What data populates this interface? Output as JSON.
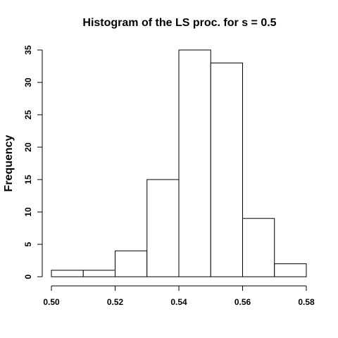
{
  "chart_data": {
    "type": "bar",
    "title": "Histogram of the LS proc. for s = 0.5",
    "xlabel": "",
    "ylabel": "Frequency",
    "bins": [
      {
        "start": 0.5,
        "end": 0.51,
        "count": 1
      },
      {
        "start": 0.51,
        "end": 0.52,
        "count": 1
      },
      {
        "start": 0.52,
        "end": 0.53,
        "count": 4
      },
      {
        "start": 0.53,
        "end": 0.54,
        "count": 15
      },
      {
        "start": 0.54,
        "end": 0.55,
        "count": 35
      },
      {
        "start": 0.55,
        "end": 0.56,
        "count": 33
      },
      {
        "start": 0.56,
        "end": 0.57,
        "count": 9
      },
      {
        "start": 0.57,
        "end": 0.58,
        "count": 2
      }
    ],
    "xlim": [
      0.5,
      0.58
    ],
    "ylim": [
      0,
      35
    ],
    "xticks": [
      "0.50",
      "0.52",
      "0.54",
      "0.56",
      "0.58"
    ],
    "xtick_values": [
      0.5,
      0.52,
      0.54,
      0.56,
      0.58
    ],
    "yticks": [
      "0",
      "5",
      "10",
      "15",
      "20",
      "25",
      "30",
      "35"
    ],
    "ytick_values": [
      0,
      5,
      10,
      15,
      20,
      25,
      30,
      35
    ],
    "grid": false,
    "bar_fill": "#ffffff",
    "bar_stroke": "#000000"
  }
}
